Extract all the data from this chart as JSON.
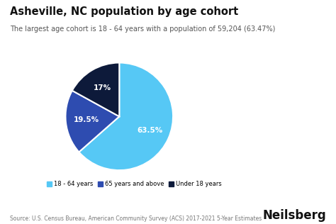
{
  "title": "Asheville, NC population by age cohort",
  "subtitle": "The largest age cohort is 18 - 64 years with a population of 59,204 (63.47%)",
  "slices": [
    63.5,
    19.5,
    17.0
  ],
  "colors": [
    "#56C8F5",
    "#2E4CB0",
    "#0D1A3A"
  ],
  "autopct_labels": [
    "63.5%",
    "19.5%",
    "17%"
  ],
  "legend_labels": [
    "18 - 64 years",
    "65 years and above",
    "Under 18 years"
  ],
  "legend_colors": [
    "#56C8F5",
    "#2E4CB0",
    "#0D1A3A"
  ],
  "source_text": "Source: U.S. Census Bureau, American Community Survey (ACS) 2017-2021 5-Year Estimates",
  "brand_text": "Neilsberg",
  "background_color": "#FFFFFF",
  "startangle": 90,
  "title_fontsize": 10.5,
  "subtitle_fontsize": 7.0,
  "label_fontsize": 7.5,
  "source_fontsize": 5.5,
  "brand_fontsize": 12
}
